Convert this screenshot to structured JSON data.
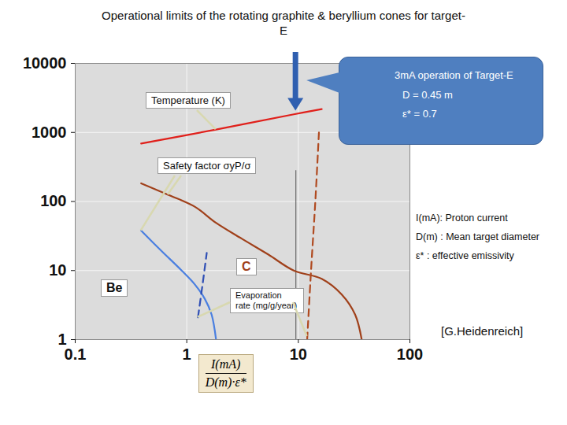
{
  "chart_data": {
    "type": "line",
    "title": "Operational limits of the rotating graphite & beryllium cones for target-E",
    "x_label": {
      "numerator": "I(mA)",
      "denominator": "D(m)·ε*"
    },
    "log": true,
    "grid": true,
    "xlim": [
      0.1,
      100
    ],
    "xticks": [
      0.1,
      1,
      10,
      100
    ],
    "ylim": [
      1,
      10000
    ],
    "yticks": [
      1,
      10,
      100,
      1000,
      10000
    ],
    "series": [
      {
        "x": [
          0.39,
          1.83,
          9.3,
          16.2
        ],
        "values": [
          690,
          1100,
          1840,
          2180
        ],
        "color": "#e0201b",
        "line_style": "solid"
      },
      {
        "x": [
          0.39,
          0.68,
          1.18,
          1.83,
          3.1,
          5.4,
          9.1,
          16.2,
          24.5,
          32.3,
          37
        ],
        "values": [
          183,
          125,
          84,
          49,
          29,
          17,
          10,
          7.6,
          4.5,
          2.3,
          1
        ],
        "color": "#a0401a",
        "line_style": "solid"
      },
      {
        "x": [
          12,
          13,
          14.2,
          15.3
        ],
        "values": [
          1,
          10,
          100,
          1000
        ],
        "color": "#b04a20",
        "line_style": "dashed"
      },
      {
        "x": [
          0.39,
          0.59,
          0.9,
          1.18,
          1.45,
          1.67,
          1.83
        ],
        "values": [
          37.8,
          19.4,
          10,
          6.3,
          3.9,
          2.3,
          1
        ],
        "color": "#4a7fe0",
        "line_style": "solid"
      },
      {
        "x": [
          1.26,
          1.38,
          1.51
        ],
        "values": [
          2.1,
          6,
          18
        ],
        "color": "#2f4fb5",
        "line_style": "dashed"
      }
    ],
    "operating_line": {
      "x": 9.5,
      "y": [
        1,
        280
      ]
    },
    "annotations": {
      "temperature": "Temperature (K)",
      "safety_factor": "Safety factor σyP/σ",
      "carbon": "C",
      "beryllium": "Be",
      "evaporation": "Evaporation rate (mg/g/year)"
    },
    "callout": [
      "3mA operation of Target-E",
      "D = 0.45 m",
      "ε* = 0.7"
    ],
    "notes": [
      "I(mA): Proton current",
      "D(m) : Mean target diameter",
      "ε* : effective emissivity"
    ],
    "credit": "[G.Heidenreich]"
  }
}
